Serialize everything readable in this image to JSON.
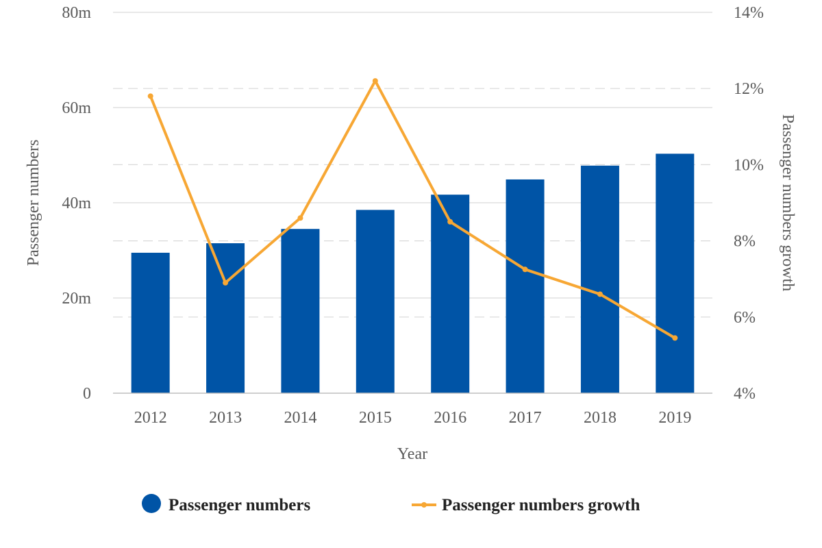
{
  "chart_data": {
    "type": "bar+line",
    "categories": [
      "2012",
      "2013",
      "2014",
      "2015",
      "2016",
      "2017",
      "2018",
      "2019"
    ],
    "series": [
      {
        "name": "Passenger numbers",
        "type": "bar",
        "axis": "left",
        "color": "#0054A6",
        "values": [
          29.5,
          31.5,
          34.5,
          38.5,
          41.7,
          44.9,
          47.8,
          50.3
        ]
      },
      {
        "name": "Passenger numbers growth",
        "type": "line",
        "axis": "right",
        "color": "#F7A734",
        "values": [
          11.8,
          6.9,
          8.6,
          12.2,
          8.5,
          7.25,
          6.6,
          5.45
        ]
      }
    ],
    "xlabel": "Year",
    "ylabel": "Passenger numbers",
    "y2label": "Passenger numbers growth",
    "ylim": [
      0,
      80
    ],
    "y2lim": [
      4,
      14
    ],
    "yticks": [
      "0",
      "20m",
      "40m",
      "60m",
      "80m"
    ],
    "y2ticks": [
      "4%",
      "6%",
      "8%",
      "10%",
      "12%",
      "14%"
    ],
    "grid": true,
    "legend": "bottom"
  }
}
